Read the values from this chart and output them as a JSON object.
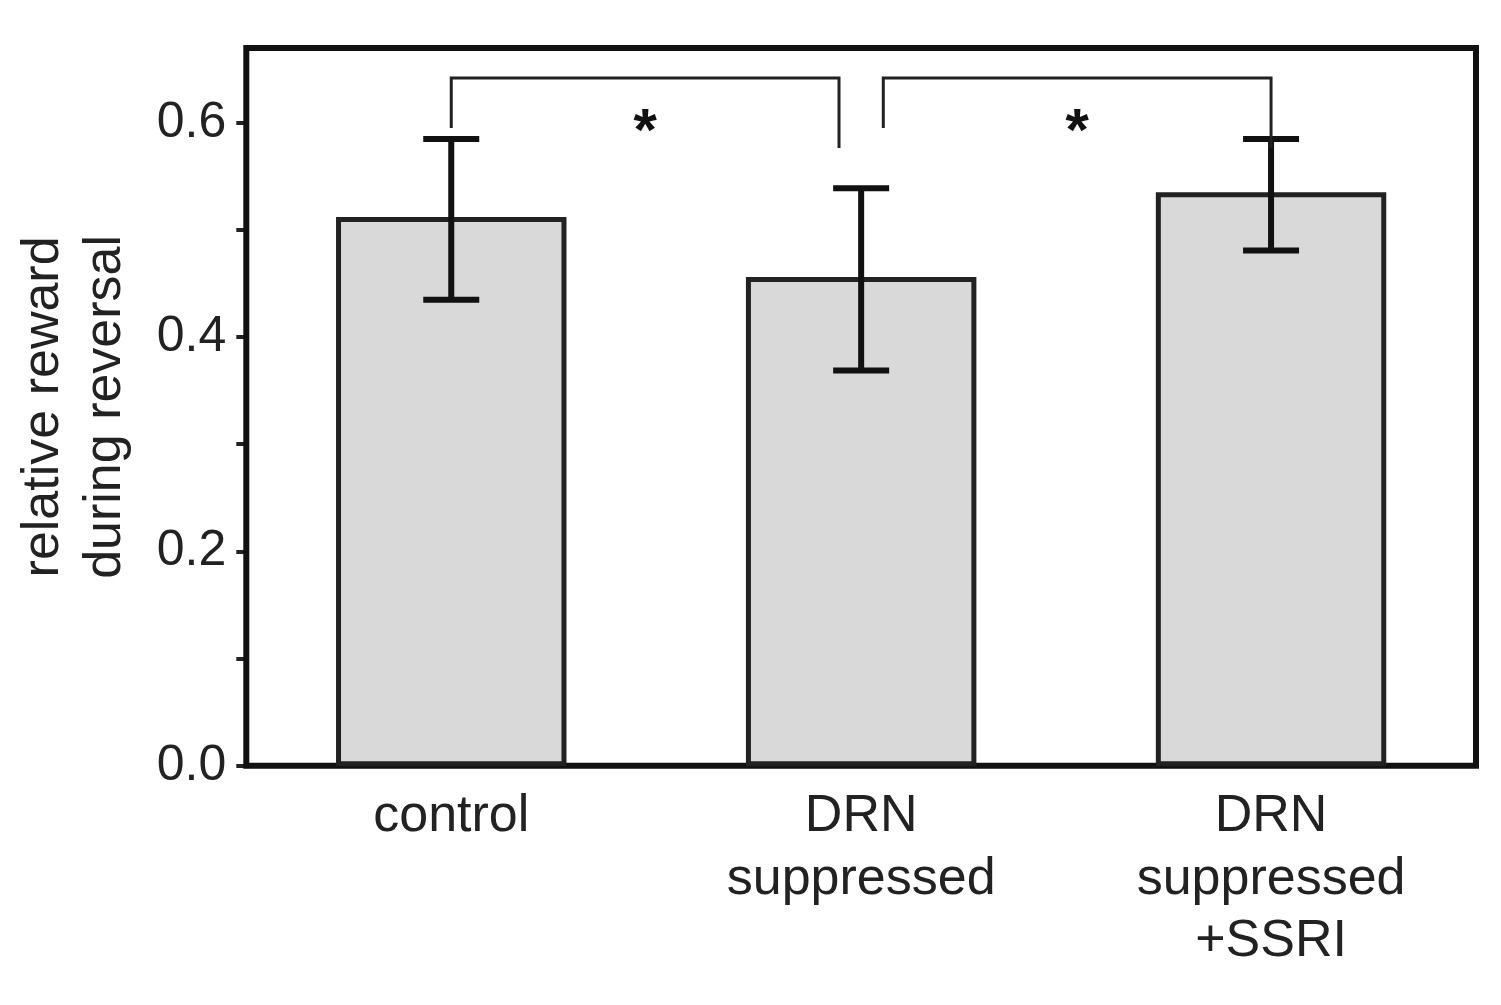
{
  "chart_data": {
    "type": "bar",
    "ylabel": "relative reward\nduring reversal",
    "categories": [
      "control",
      "DRN\nsuppressed",
      "DRN\nsuppressed\n+SSRI"
    ],
    "values": [
      0.51,
      0.454,
      0.533
    ],
    "color": "#d9d9d9",
    "errors": [
      0.075,
      0.085,
      0.052
    ],
    "ylim": [
      0,
      0.67
    ],
    "yticks": [
      {
        "value": 0,
        "label": "0.0"
      },
      {
        "value": 0.1,
        "label": null
      },
      {
        "value": 0.2,
        "label": "0.2"
      },
      {
        "value": 0.3,
        "label": null
      },
      {
        "value": 0.4,
        "label": "0.4"
      },
      {
        "value": 0.5,
        "label": null
      },
      {
        "value": 0.6,
        "label": "0.6"
      }
    ],
    "annotations": [
      "*",
      "*"
    ],
    "grid": false,
    "legend": false
  }
}
